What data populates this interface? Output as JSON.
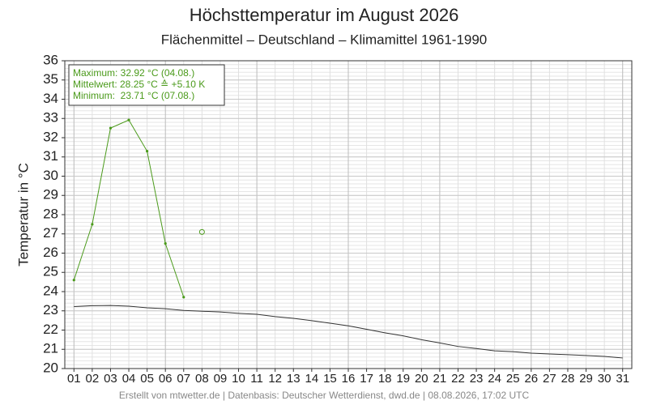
{
  "chart_data": {
    "type": "line",
    "title": "Höchsttemperatur im August 2026",
    "subtitle": "Flächenmittel – Deutschland – Klimamittel 1961-1990",
    "y_label": "Temperatur in °C",
    "footer": "Erstellt von mtwetter.de | Datenbasis: Deutscher Wetterdienst, dwd.de | 08.08.2026, 17:02 UTC",
    "annotations": [
      "Maximum: 32.92 °C (04.08.)",
      "Mittelwert: 28.25 °C ≙ +5.10 K",
      "Minimum:  23.71 °C (07.08.)"
    ],
    "categories": [
      "01",
      "02",
      "03",
      "04",
      "05",
      "06",
      "07",
      "08",
      "09",
      "10",
      "11",
      "12",
      "13",
      "14",
      "15",
      "16",
      "17",
      "18",
      "19",
      "20",
      "21",
      "22",
      "23",
      "24",
      "25",
      "26",
      "27",
      "28",
      "29",
      "30",
      "31"
    ],
    "series": [
      {
        "color": "#4a9a1a",
        "style": "line",
        "values": [
          24.6,
          27.5,
          32.5,
          32.92,
          31.3,
          26.5,
          23.71,
          null,
          null,
          null,
          null,
          null,
          null,
          null,
          null,
          null,
          null,
          null,
          null,
          null,
          null,
          null,
          null,
          null,
          null,
          null,
          null,
          null,
          null,
          null,
          null
        ]
      },
      {
        "color": "#333333",
        "style": "line",
        "values": [
          23.22,
          23.27,
          23.28,
          23.24,
          23.16,
          23.11,
          23.02,
          22.98,
          22.94,
          22.87,
          22.82,
          22.7,
          22.61,
          22.49,
          22.36,
          22.22,
          22.04,
          21.86,
          21.7,
          21.5,
          21.33,
          21.15,
          21.04,
          20.92,
          20.88,
          20.8,
          20.76,
          20.72,
          20.68,
          20.63,
          20.55
        ]
      },
      {
        "color": "#4a9a1a",
        "style": "circle",
        "values": [
          null,
          null,
          null,
          null,
          null,
          null,
          null,
          27.1,
          null,
          null,
          null,
          null,
          null,
          null,
          null,
          null,
          null,
          null,
          null,
          null,
          null,
          null,
          null,
          null,
          null,
          null,
          null,
          null,
          null,
          null,
          null
        ]
      }
    ],
    "ylim": [
      20,
      36
    ],
    "yticks": [
      20,
      21,
      22,
      23,
      24,
      25,
      26,
      27,
      28,
      29,
      30,
      31,
      32,
      33,
      34,
      35,
      36
    ],
    "grid": true
  }
}
